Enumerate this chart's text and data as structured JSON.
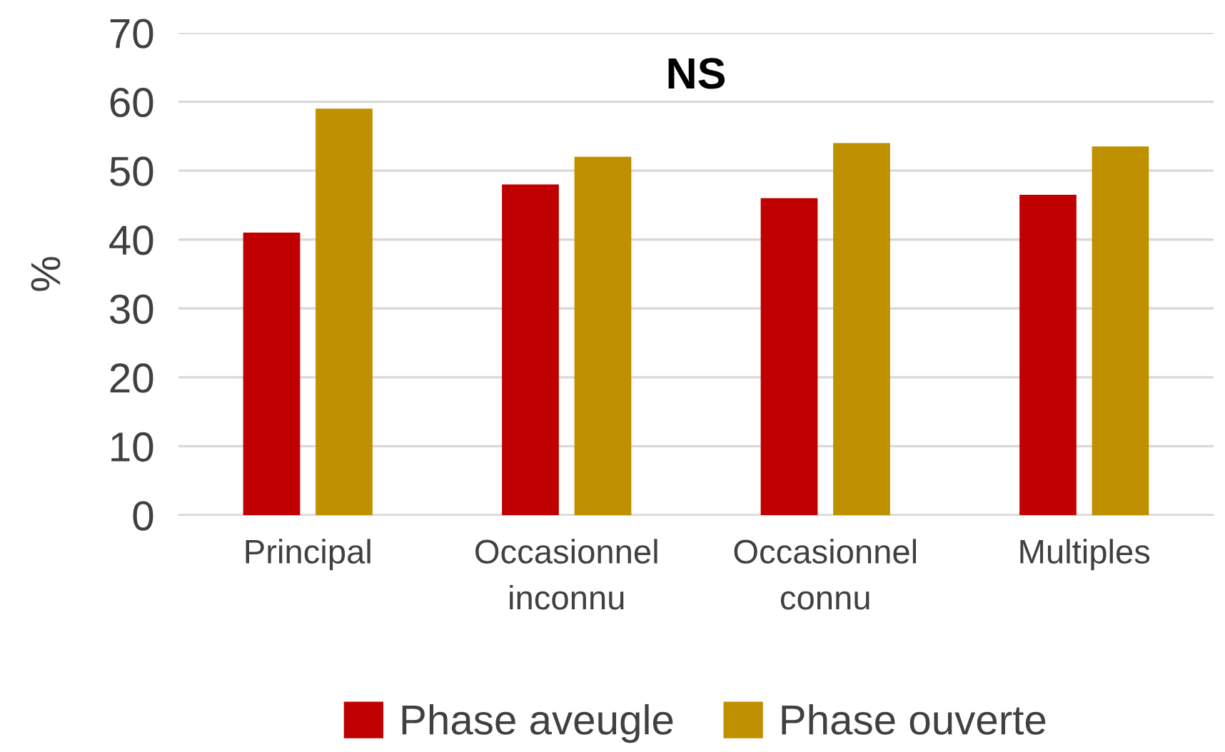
{
  "chart_data": {
    "type": "bar",
    "title": "NS",
    "ylabel": "%",
    "categories": [
      "Principal",
      "Occasionnel\ninconnu",
      "Occasionnel\nconnu",
      "Multiples"
    ],
    "series": [
      {
        "name": "Phase aveugle",
        "color": "#c00000",
        "values": [
          41,
          48,
          46,
          46.5
        ]
      },
      {
        "name": "Phase ouverte",
        "color": "#bf9000",
        "values": [
          59,
          52,
          54,
          53.5
        ]
      }
    ],
    "ylim": [
      0,
      70
    ],
    "yticks": [
      0,
      10,
      20,
      30,
      40,
      50,
      60,
      70
    ],
    "grid": "y",
    "legend": "bottom"
  }
}
